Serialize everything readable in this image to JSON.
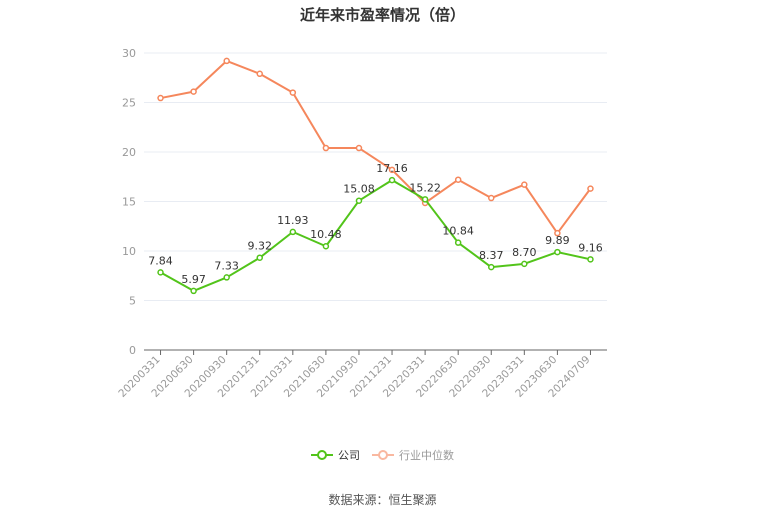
{
  "title": "近年来市盈率情况（倍）",
  "legend": {
    "company_label": "公司",
    "industry_label": "行业中位数"
  },
  "source": "数据来源：恒生聚源",
  "colors": {
    "company": "#52c41a",
    "industry": "#f5875c",
    "industry_legend": "#f9b8a0",
    "grid": "#e8ecf3",
    "axis": "#666666",
    "tick_text": "#999999"
  },
  "chart_data": {
    "type": "line",
    "title": "近年来市盈率情况（倍）",
    "xlabel": "",
    "ylabel": "",
    "ylim": [
      0,
      30
    ],
    "yticks": [
      0,
      5,
      10,
      15,
      20,
      25,
      30
    ],
    "grid": true,
    "legend_position": "bottom",
    "categories": [
      "20200331",
      "20200630",
      "20200930",
      "20201231",
      "20210331",
      "20210630",
      "20210930",
      "20211231",
      "20220331",
      "20220630",
      "20220930",
      "20230331",
      "20230630",
      "20240709"
    ],
    "series": [
      {
        "name": "公司",
        "values": [
          7.84,
          5.97,
          7.33,
          9.32,
          11.93,
          10.48,
          15.08,
          17.16,
          15.22,
          10.84,
          8.37,
          8.7,
          9.89,
          9.16
        ],
        "labels_shown": true
      },
      {
        "name": "行业中位数",
        "values": [
          25.45,
          26.1,
          29.2,
          27.9,
          26.0,
          20.4,
          20.4,
          18.2,
          14.85,
          17.2,
          15.35,
          16.7,
          11.8,
          16.3
        ],
        "labels_shown": false
      }
    ]
  }
}
